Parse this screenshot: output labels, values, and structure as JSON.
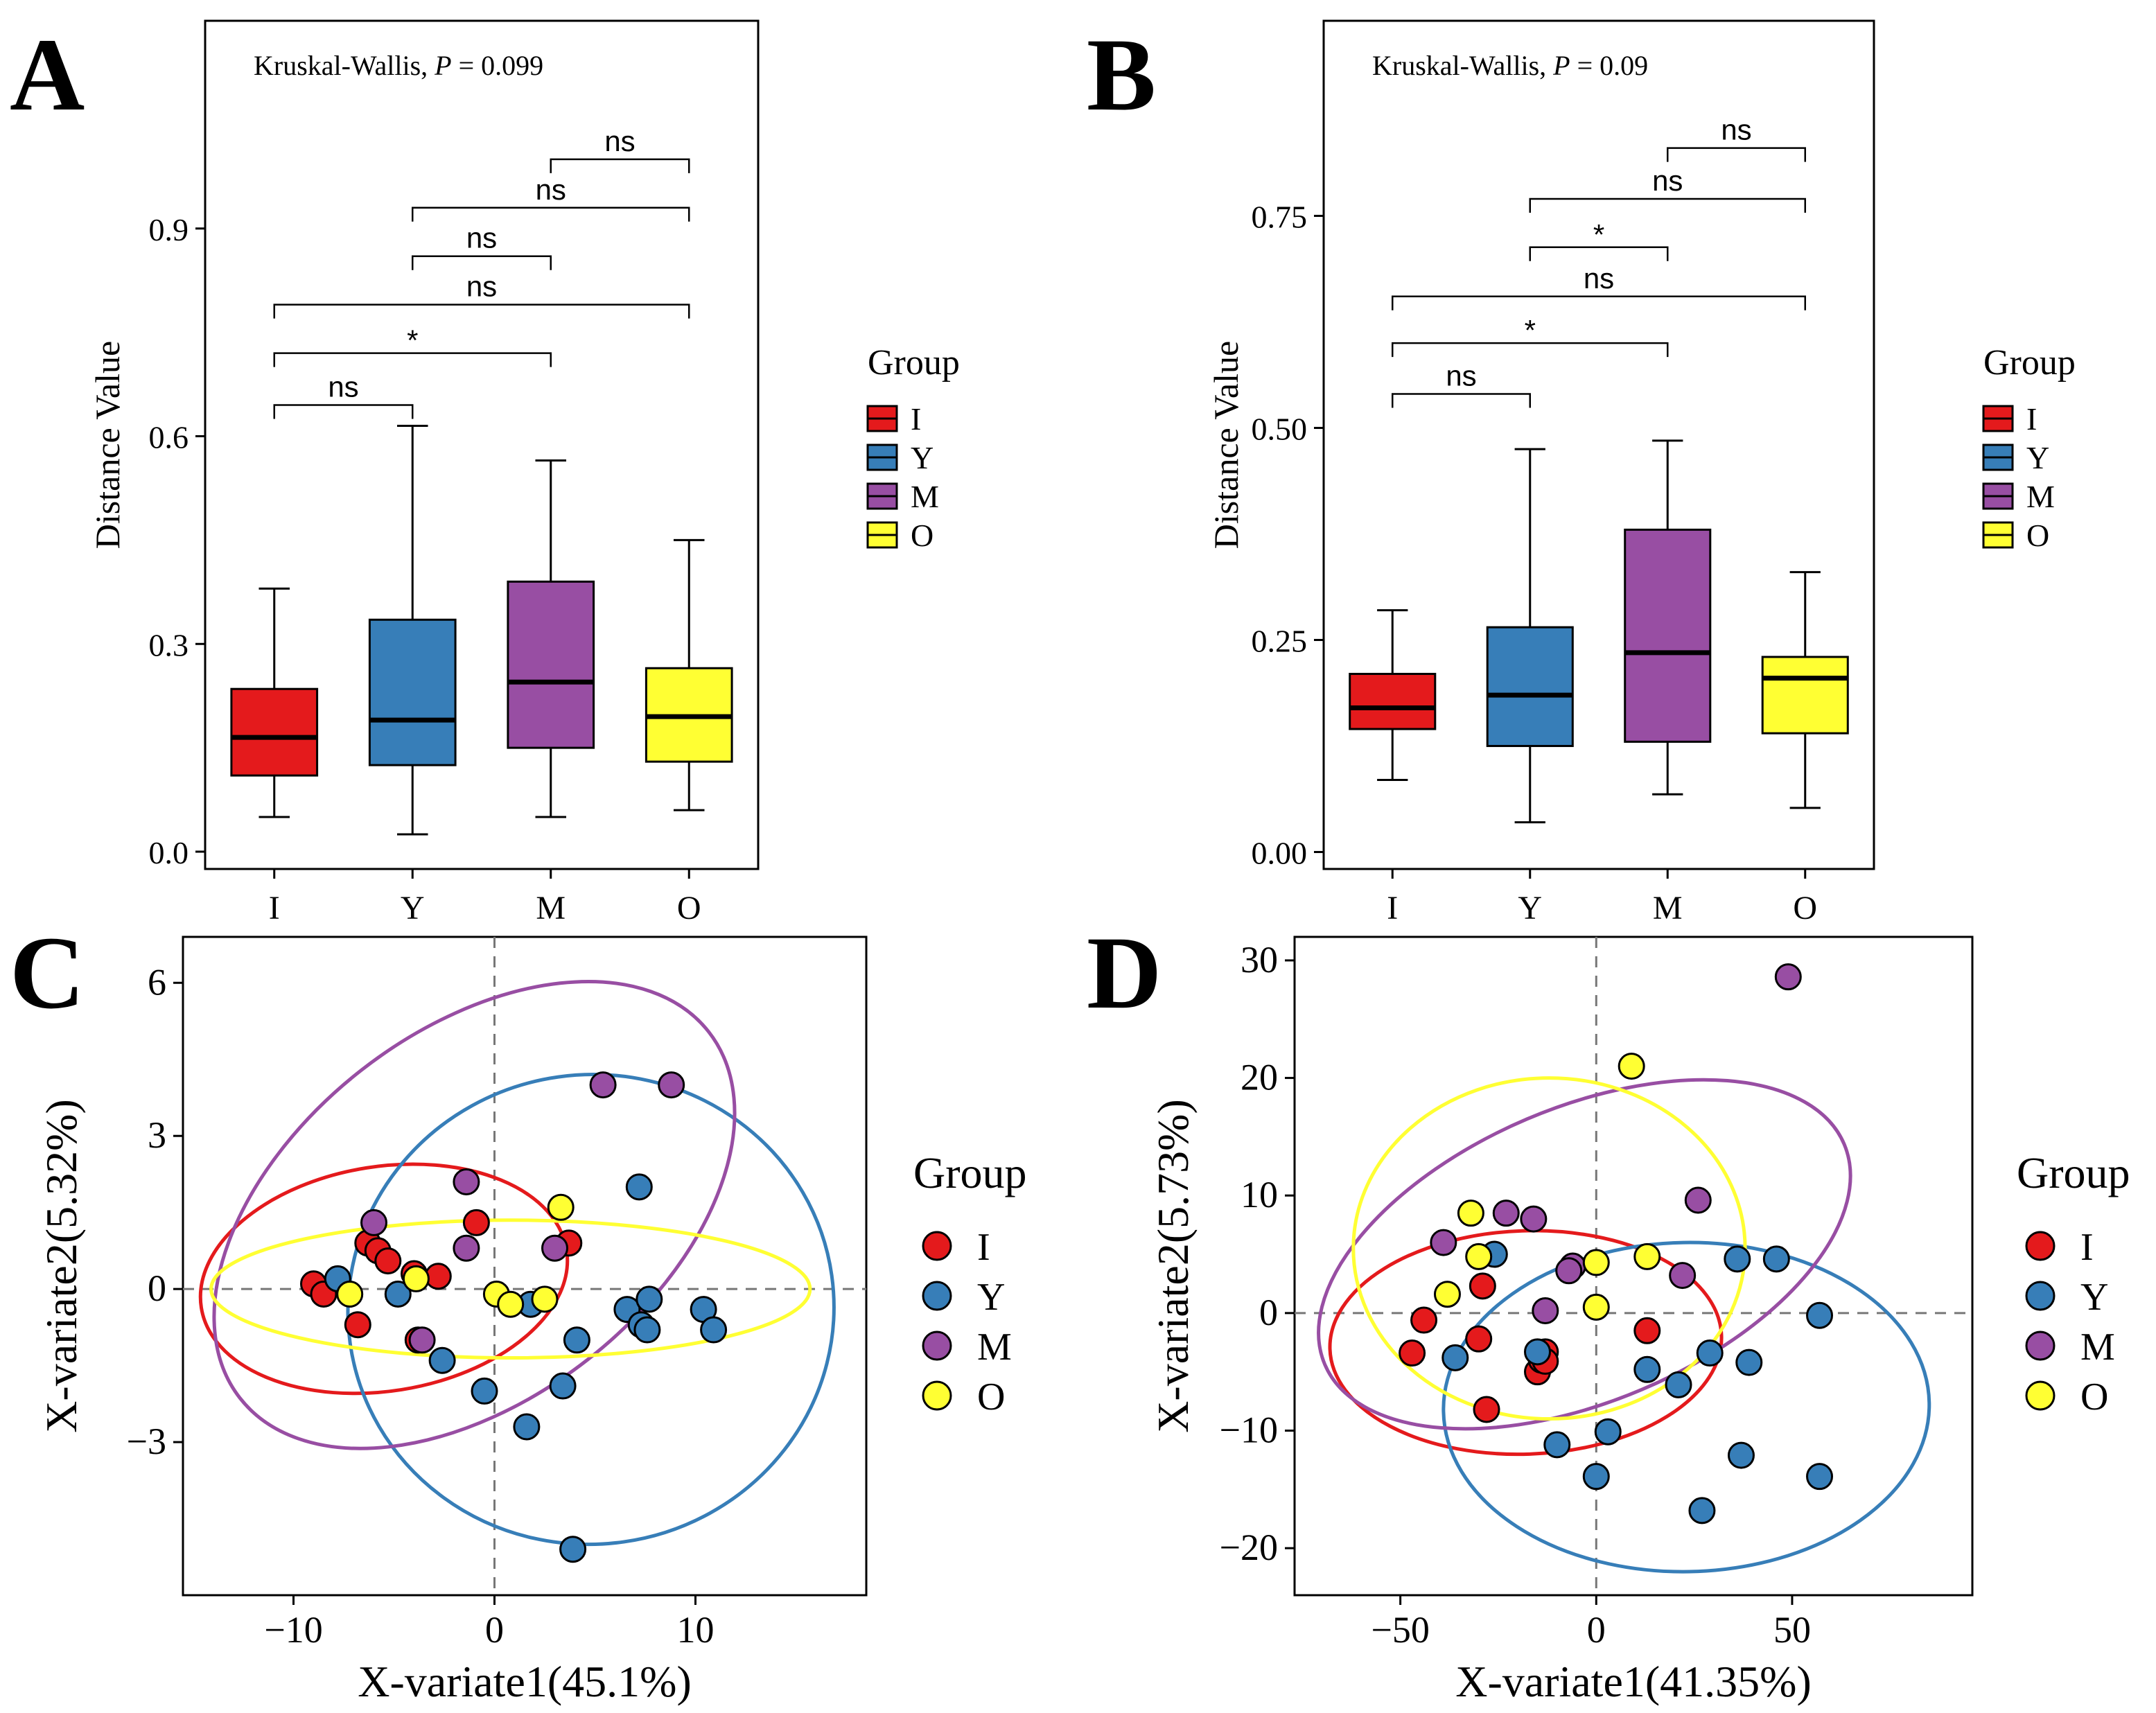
{
  "figure_title": "",
  "chart_data": [
    {
      "panel": "A",
      "type": "box",
      "title": "",
      "stat_label": "Kruskal-Wallis, ",
      "stat_p_label": "P",
      "stat_value": " = 0.099",
      "xlabel": "",
      "ylabel": "Distance Value",
      "ylim": [
        -0.025,
        1.2
      ],
      "yticks": [
        0.0,
        0.3,
        0.6,
        0.9
      ],
      "ytick_labels": [
        "0.0",
        "0.3",
        "0.6",
        "0.9"
      ],
      "categories": [
        "I",
        "Y",
        "M",
        "O"
      ],
      "boxes": [
        {
          "group": "I",
          "min": 0.05,
          "q1": 0.11,
          "median": 0.165,
          "q3": 0.235,
          "max": 0.38
        },
        {
          "group": "Y",
          "min": 0.025,
          "q1": 0.125,
          "median": 0.19,
          "q3": 0.335,
          "max": 0.615
        },
        {
          "group": "M",
          "min": 0.05,
          "q1": 0.15,
          "median": 0.245,
          "q3": 0.39,
          "max": 0.565
        },
        {
          "group": "O",
          "min": 0.06,
          "q1": 0.13,
          "median": 0.195,
          "q3": 0.265,
          "max": 0.45
        }
      ],
      "comparisons": [
        {
          "from": "I",
          "to": "Y",
          "y": 0.645,
          "label": "ns"
        },
        {
          "from": "I",
          "to": "M",
          "y": 0.72,
          "label": "*"
        },
        {
          "from": "I",
          "to": "O",
          "y": 0.79,
          "label": "ns"
        },
        {
          "from": "Y",
          "to": "M",
          "y": 0.86,
          "label": "ns"
        },
        {
          "from": "Y",
          "to": "O",
          "y": 0.93,
          "label": "ns"
        },
        {
          "from": "M",
          "to": "O",
          "y": 1.0,
          "label": "ns"
        }
      ],
      "legend_title": "Group",
      "legend": [
        {
          "label": "I",
          "color": "#e41a1c"
        },
        {
          "label": "Y",
          "color": "#377eb8"
        },
        {
          "label": "M",
          "color": "#984ea3"
        },
        {
          "label": "O",
          "color": "#ffff33"
        }
      ]
    },
    {
      "panel": "B",
      "type": "box",
      "title": "",
      "stat_label": "Kruskal-Wallis, ",
      "stat_p_label": "P",
      "stat_value": " = 0.09",
      "xlabel": "",
      "ylabel": "Distance Value",
      "ylim": [
        -0.02,
        0.98
      ],
      "yticks": [
        0.0,
        0.25,
        0.5,
        0.75
      ],
      "ytick_labels": [
        "0.00",
        "0.25",
        "0.50",
        "0.75"
      ],
      "categories": [
        "I",
        "Y",
        "M",
        "O"
      ],
      "boxes": [
        {
          "group": "I",
          "min": 0.085,
          "q1": 0.145,
          "median": 0.17,
          "q3": 0.21,
          "max": 0.285
        },
        {
          "group": "Y",
          "min": 0.035,
          "q1": 0.125,
          "median": 0.185,
          "q3": 0.265,
          "max": 0.475
        },
        {
          "group": "M",
          "min": 0.068,
          "q1": 0.13,
          "median": 0.235,
          "q3": 0.38,
          "max": 0.485
        },
        {
          "group": "O",
          "min": 0.052,
          "q1": 0.14,
          "median": 0.205,
          "q3": 0.23,
          "max": 0.33
        }
      ],
      "comparisons": [
        {
          "from": "I",
          "to": "Y",
          "y": 0.54,
          "label": "ns"
        },
        {
          "from": "I",
          "to": "M",
          "y": 0.6,
          "label": "*"
        },
        {
          "from": "I",
          "to": "O",
          "y": 0.655,
          "label": "ns"
        },
        {
          "from": "Y",
          "to": "M",
          "y": 0.713,
          "label": "*"
        },
        {
          "from": "Y",
          "to": "O",
          "y": 0.77,
          "label": "ns"
        },
        {
          "from": "M",
          "to": "O",
          "y": 0.83,
          "label": "ns"
        }
      ],
      "legend_title": "Group",
      "legend": [
        {
          "label": "I",
          "color": "#e41a1c"
        },
        {
          "label": "Y",
          "color": "#377eb8"
        },
        {
          "label": "M",
          "color": "#984ea3"
        },
        {
          "label": "O",
          "color": "#ffff33"
        }
      ]
    },
    {
      "panel": "C",
      "type": "scatter",
      "title": "",
      "xlabel": "X-variate1(45.1%)",
      "ylabel": "X-variate2(5.32%)",
      "xlim": [
        -15.5,
        18.5
      ],
      "ylim": [
        -6.0,
        6.9
      ],
      "xticks": [
        -10,
        0,
        10
      ],
      "xtick_labels": [
        "−10",
        "0",
        "10"
      ],
      "yticks": [
        -3,
        0,
        3,
        6
      ],
      "ytick_labels": [
        "−3",
        "0",
        "3",
        "6"
      ],
      "legend_title": "Group",
      "legend": [
        {
          "label": "I",
          "color": "#e41a1c"
        },
        {
          "label": "Y",
          "color": "#377eb8"
        },
        {
          "label": "M",
          "color": "#984ea3"
        },
        {
          "label": "O",
          "color": "#ffff33"
        }
      ],
      "ellipses": [
        {
          "group": "I",
          "cx": -5.5,
          "cy": 0.2,
          "rx": 9.2,
          "ry": 2.2,
          "angle_deg": 9
        },
        {
          "group": "Y",
          "cx": 4.8,
          "cy": -0.4,
          "rx": 12.1,
          "ry": 4.6,
          "angle_deg": 8
        },
        {
          "group": "M",
          "cx": -1.0,
          "cy": 1.45,
          "rx": 14.8,
          "ry": 3.6,
          "angle_deg": 38
        },
        {
          "group": "O",
          "cx": 0.8,
          "cy": 0.0,
          "rx": 14.9,
          "ry": 1.35,
          "angle_deg": 0
        }
      ],
      "series": [
        {
          "name": "I",
          "points": [
            [
              -9.0,
              0.1
            ],
            [
              -8.5,
              -0.1
            ],
            [
              -6.3,
              0.9
            ],
            [
              -5.8,
              0.75
            ],
            [
              -5.3,
              0.55
            ],
            [
              -4.0,
              0.3
            ],
            [
              -2.8,
              0.25
            ],
            [
              -6.8,
              -0.7
            ],
            [
              -3.8,
              -1.0
            ],
            [
              -0.9,
              1.3
            ],
            [
              3.7,
              0.9
            ]
          ]
        },
        {
          "name": "Y",
          "points": [
            [
              -7.8,
              0.2
            ],
            [
              -4.8,
              -0.1
            ],
            [
              -2.6,
              -1.4
            ],
            [
              -0.5,
              -2.0
            ],
            [
              1.8,
              -0.3
            ],
            [
              1.6,
              -2.7
            ],
            [
              3.4,
              -1.9
            ],
            [
              4.1,
              -1.0
            ],
            [
              6.6,
              -0.4
            ],
            [
              7.3,
              -0.7
            ],
            [
              7.6,
              -0.8
            ],
            [
              7.7,
              -0.2
            ],
            [
              7.2,
              2.0
            ],
            [
              10.4,
              -0.4
            ],
            [
              10.9,
              -0.8
            ],
            [
              3.9,
              -5.1
            ]
          ]
        },
        {
          "name": "M",
          "points": [
            [
              -6.0,
              1.3
            ],
            [
              -1.4,
              2.1
            ],
            [
              -1.4,
              0.8
            ],
            [
              -3.6,
              -1.0
            ],
            [
              3.0,
              0.8
            ],
            [
              5.4,
              4.0
            ],
            [
              8.8,
              4.0
            ]
          ]
        },
        {
          "name": "O",
          "points": [
            [
              -7.2,
              -0.1
            ],
            [
              -3.9,
              0.2
            ],
            [
              0.1,
              -0.1
            ],
            [
              0.8,
              -0.3
            ],
            [
              2.5,
              -0.2
            ],
            [
              3.3,
              1.6
            ]
          ]
        }
      ]
    },
    {
      "panel": "D",
      "type": "scatter",
      "title": "",
      "xlabel": "X-variate1(41.35%)",
      "ylabel": "X-variate2(5.73%)",
      "xlim": [
        -77,
        96
      ],
      "ylim": [
        -24,
        32
      ],
      "xticks": [
        -50,
        0,
        50
      ],
      "xtick_labels": [
        "−50",
        "0",
        "50"
      ],
      "yticks": [
        -20,
        -10,
        0,
        10,
        20,
        30
      ],
      "ytick_labels": [
        "−20",
        "−10",
        "0",
        "10",
        "20",
        "30"
      ],
      "legend_title": "Group",
      "legend": [
        {
          "label": "I",
          "color": "#e41a1c"
        },
        {
          "label": "Y",
          "color": "#377eb8"
        },
        {
          "label": "M",
          "color": "#984ea3"
        },
        {
          "label": "O",
          "color": "#ffff33"
        }
      ],
      "ellipses": [
        {
          "group": "I",
          "cx": -18,
          "cy": -2.5,
          "rx": 50,
          "ry": 9.5,
          "angle_deg": 2
        },
        {
          "group": "Y",
          "cx": 23,
          "cy": -8.0,
          "rx": 62,
          "ry": 14.0,
          "angle_deg": 1
        },
        {
          "group": "M",
          "cx": -3,
          "cy": 5.0,
          "rx": 72,
          "ry": 12.5,
          "angle_deg": 23
        },
        {
          "group": "O",
          "cx": -12,
          "cy": 5.5,
          "rx": 50,
          "ry": 14.5,
          "angle_deg": 0
        }
      ],
      "series": [
        {
          "name": "I",
          "points": [
            [
              -47,
              -3.4
            ],
            [
              -44,
              -0.6
            ],
            [
              -30,
              -2.2
            ],
            [
              -29,
              2.3
            ],
            [
              -28,
              -8.2
            ],
            [
              -15,
              -5.0
            ],
            [
              -14,
              -4.0
            ],
            [
              -13,
              -3.3
            ],
            [
              -13,
              -4.1
            ],
            [
              13,
              -1.5
            ]
          ]
        },
        {
          "name": "Y",
          "points": [
            [
              -36,
              -3.8
            ],
            [
              -26,
              5.0
            ],
            [
              -15,
              -3.3
            ],
            [
              -10,
              -11.2
            ],
            [
              0,
              -13.9
            ],
            [
              3,
              -10.1
            ],
            [
              13,
              -4.8
            ],
            [
              21,
              -6.1
            ],
            [
              27,
              -16.8
            ],
            [
              29,
              -3.4
            ],
            [
              36,
              4.6
            ],
            [
              37,
              -12.1
            ],
            [
              39,
              -4.2
            ],
            [
              46,
              4.6
            ],
            [
              57,
              -13.9
            ],
            [
              57,
              -0.2
            ]
          ]
        },
        {
          "name": "M",
          "points": [
            [
              -39,
              6.0
            ],
            [
              -23,
              8.5
            ],
            [
              -16,
              8.0
            ],
            [
              -6,
              4.0
            ],
            [
              -7,
              3.6
            ],
            [
              -13,
              0.2
            ],
            [
              22,
              3.2
            ],
            [
              26,
              9.6
            ],
            [
              49,
              28.6
            ]
          ]
        },
        {
          "name": "O",
          "points": [
            [
              -38,
              1.6
            ],
            [
              -30,
              4.8
            ],
            [
              -32,
              8.5
            ],
            [
              0,
              4.3
            ],
            [
              0,
              0.5
            ],
            [
              13,
              4.8
            ],
            [
              9,
              21.0
            ]
          ]
        }
      ]
    }
  ]
}
